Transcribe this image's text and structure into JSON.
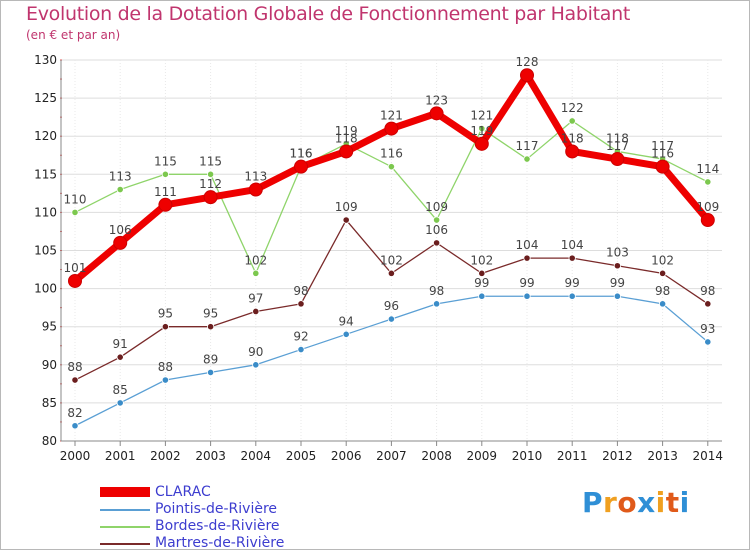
{
  "header": {
    "title": "Evolution de la Dotation Globale de Fonctionnement par Habitant",
    "subtitle": "(en € et par an)"
  },
  "logo": {
    "letters": [
      "P",
      "r",
      "o",
      "x",
      "i",
      "t",
      "i"
    ],
    "colors": [
      "#2f8fd6",
      "#f0a020",
      "#e05a1a",
      "#2f8fd6",
      "#f0a020",
      "#e05a1a",
      "#2f8fd6"
    ]
  },
  "chart_data": {
    "type": "line",
    "title": "Evolution de la Dotation Globale de Fonctionnement par Habitant",
    "subtitle": "(en € et par an)",
    "xlabel": "",
    "ylabel": "",
    "x": [
      "2000",
      "2001",
      "2002",
      "2003",
      "2004",
      "2005",
      "2006",
      "2007",
      "2008",
      "2009",
      "2010",
      "2011",
      "2012",
      "2013",
      "2014"
    ],
    "ylim": [
      80,
      130
    ],
    "yticks": [
      80,
      85,
      90,
      95,
      100,
      105,
      110,
      115,
      120,
      125,
      130
    ],
    "grid": true,
    "legend_position": "bottom-left",
    "series": [
      {
        "name": "Pointis-de-Rivière",
        "color": "#5a9fd4",
        "marker": "#3a8cc8",
        "values": [
          82,
          85,
          88,
          89,
          90,
          92,
          94,
          96,
          98,
          99,
          99,
          99,
          99,
          98,
          93
        ]
      },
      {
        "name": "Martres-de-Rivière",
        "color": "#7a2a2a",
        "marker": "#6b1e1e",
        "values": [
          88,
          91,
          95,
          95,
          97,
          98,
          109,
          102,
          106,
          102,
          104,
          104,
          103,
          102,
          98
        ]
      },
      {
        "name": "Bordes-de-Rivière",
        "color": "#8fd46a",
        "marker": "#7cc84e",
        "values": [
          110,
          113,
          115,
          115,
          102,
          116,
          119,
          116,
          109,
          121,
          117,
          122,
          118,
          117,
          114
        ]
      },
      {
        "name": "CLARAC",
        "color": "#ee0000",
        "marker": "#ee0000",
        "values": [
          101,
          106,
          111,
          112,
          113,
          116,
          118,
          121,
          123,
          119,
          128,
          118,
          117,
          116,
          109
        ]
      }
    ],
    "legend": [
      "CLARAC",
      "Pointis-de-Rivière",
      "Bordes-de-Rivière",
      "Martres-de-Rivière"
    ]
  }
}
